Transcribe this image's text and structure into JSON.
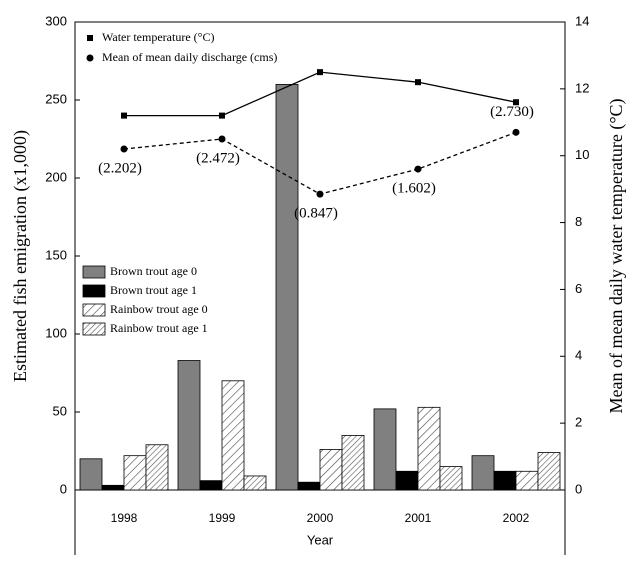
{
  "chart_data": {
    "type": "bar",
    "categories": [
      "1998",
      "1999",
      "2000",
      "2001",
      "2002"
    ],
    "series": [
      {
        "name": "Brown trout age 0",
        "color": "#808080",
        "values": [
          20,
          83,
          260,
          52,
          22
        ]
      },
      {
        "name": "Brown trout age 1",
        "color": "#000000",
        "values": [
          3,
          6,
          5,
          12,
          12
        ]
      },
      {
        "name": "Rainbow trout age 0",
        "color": "#ffffff",
        "hatch": "sparse",
        "values": [
          22,
          70,
          26,
          53,
          12
        ]
      },
      {
        "name": "Rainbow trout age 1",
        "color": "#ffffff",
        "hatch": "dense",
        "values": [
          29,
          9,
          35,
          15,
          24
        ]
      }
    ],
    "line_series": [
      {
        "name": "Water temperature (°C)",
        "color": "#000000",
        "marker": "square",
        "dashed": false,
        "axis": "y2",
        "values": [
          11.2,
          11.2,
          12.5,
          12.2,
          11.6
        ]
      },
      {
        "name": "Mean of mean daily discharge (cms)",
        "color": "#000000",
        "marker": "circle",
        "dashed": true,
        "axis": "y2",
        "values": [
          10.2,
          10.5,
          8.85,
          9.6,
          10.7
        ]
      }
    ],
    "annotations": [
      "(2.202)",
      "(2.472)",
      "(0.847)",
      "(1.602)",
      "(2.730)"
    ],
    "x_label": "Year",
    "y_label": "Estimated fish emigration (x1,000)",
    "y2_label": "Mean of mean daily water temperature (°C)",
    "ylim": [
      0,
      300
    ],
    "yticks": [
      0,
      50,
      100,
      150,
      200,
      250,
      300
    ],
    "y2lim": [
      0,
      14
    ],
    "y2ticks": [
      0,
      2,
      4,
      6,
      8,
      10,
      12,
      14
    ],
    "grid": false
  }
}
